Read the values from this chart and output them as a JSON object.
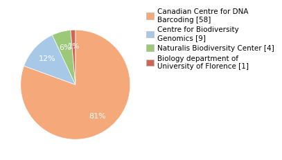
{
  "labels": [
    "Canadian Centre for DNA\nBarcoding [58]",
    "Centre for Biodiversity\nGenomics [9]",
    "Naturalis Biodiversity Center [4]",
    "Biology department of\nUniversity of Florence [1]"
  ],
  "values": [
    58,
    9,
    4,
    1
  ],
  "colors": [
    "#F5A97A",
    "#A8C8E8",
    "#9CC87A",
    "#CC6655"
  ],
  "background_color": "#ffffff",
  "label_fontsize": 7.5,
  "autopct_fontsize": 8,
  "startangle": 90
}
